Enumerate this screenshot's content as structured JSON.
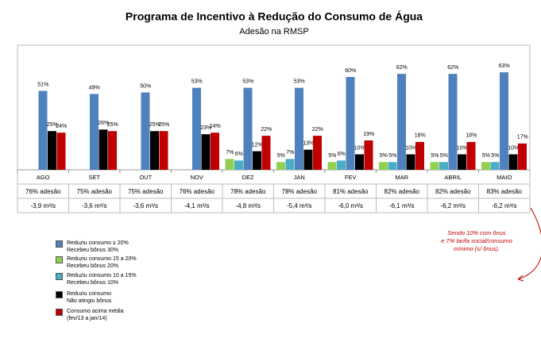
{
  "chart_data": {
    "type": "bar",
    "title": "Programa de Incentivo à Redução do Consumo de Água",
    "subtitle": "Adesão na RMSP",
    "categories": [
      "AGO",
      "SET",
      "OUT",
      "NOV",
      "DEZ",
      "JAN",
      "FEV",
      "MAR",
      "ABRIL",
      "MAIO"
    ],
    "ylim": [
      0,
      80
    ],
    "series": [
      {
        "name": "Reduziu consumo ≥ 20%\nRecebeu bônus 30%",
        "color": "#4f81bd",
        "values": [
          51,
          49,
          50,
          53,
          53,
          53,
          60,
          62,
          62,
          63
        ],
        "value_labels": [
          "51%",
          "49%",
          "50%",
          "53%",
          "53%",
          "53%",
          "60%",
          "62%",
          "62%",
          "63%"
        ]
      },
      {
        "name": "Reduziu consumo 15 a 20%\nRecebeu bônus 20%",
        "color": "#92d050",
        "values": [
          null,
          null,
          null,
          null,
          7,
          5,
          5,
          5,
          5,
          5
        ],
        "value_labels": [
          null,
          null,
          null,
          null,
          "7%",
          "5%",
          "5%",
          "5%",
          "5%",
          "5%"
        ]
      },
      {
        "name": "Reduziu consumo 10 a 15%\nRecebeu bônus 10%",
        "color": "#4bacc6",
        "values": [
          null,
          null,
          null,
          null,
          6,
          7,
          6,
          5,
          5,
          5
        ],
        "value_labels": [
          null,
          null,
          null,
          null,
          "6%",
          "7%",
          "6%",
          "5%",
          "5%",
          "5%"
        ]
      },
      {
        "name": "Reduziu consumo\nNão atingiu bônus",
        "color": "#000000",
        "values": [
          25,
          26,
          25,
          23,
          12,
          13,
          10,
          10,
          10,
          10
        ],
        "value_labels": [
          "25%",
          "26%",
          "25%",
          "23%",
          "12%",
          "13%",
          "10%",
          "10%",
          "10%",
          "10%"
        ]
      },
      {
        "name": "Consumo acima média\n(fev/13 a jan/14)",
        "color": "#c00000",
        "values": [
          24,
          25,
          25,
          24,
          22,
          22,
          19,
          18,
          18,
          17
        ],
        "value_labels": [
          "24%",
          "25%",
          "25%",
          "24%",
          "22%",
          "22%",
          "19%",
          "18%",
          "18%",
          "17%"
        ]
      }
    ],
    "table_rows": [
      [
        "76% adesão",
        "75% adesão",
        "75% adesão",
        "76% adesão",
        "78% adesão",
        "78% adesão",
        "81% adesão",
        "82% adesão",
        "82% adesão",
        "83% adesão"
      ],
      [
        "-3,9 m³/s",
        "-3,6 m³/s",
        "-3,6 m³/s",
        "-4,1 m³/s",
        "-4,8 m³/s",
        "-5,4 m³/s",
        "-6,0 m³/s",
        "-6,1 m³/s",
        "-6,2 m³/s",
        "-6,2 m³/s"
      ]
    ],
    "annotation": "Sendo 10% com ônus\ne 7% tarifa social/consumo\nmínimo (s/ ônus)."
  }
}
